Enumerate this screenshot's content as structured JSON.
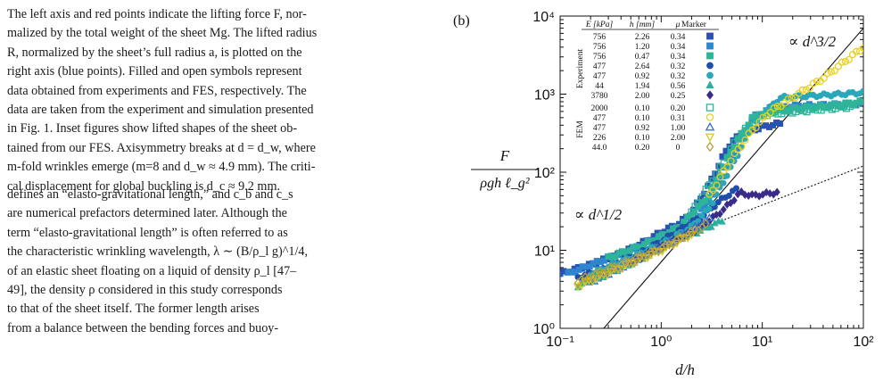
{
  "caption": {
    "lines": [
      "The left axis and red points indicate the lifting force F, nor-",
      "malized by the total weight of the sheet Mg. The lifted radius",
      "R, normalized by the sheet’s full radius a, is plotted on the",
      "right axis (blue points). Filled and open symbols represent",
      "data obtained from experiments and FES, respectively. The",
      "data are taken from the experiment and simulation presented",
      "in Fig. 1. Inset figures show lifted shapes of the sheet ob-",
      "tained from our FES. Axisymmetry breaks at d = d_w, where",
      "m-fold wrinkles emerge (m=8 and d_w ≈ 4.9 mm). The criti-",
      "cal displacement for global buckling is d_c ≈ 9.2 mm."
    ]
  },
  "body": {
    "lines": [
      "defines an “elasto-gravitational length,” and c_b and c_s",
      "are numerical prefactors determined later. Although the",
      "term “elasto-gravitational length” is often referred to as",
      "the characteristic wrinkling wavelength, λ ∼ (B/ρ_l g)^1/4,",
      "of an elastic sheet floating on a liquid of density ρ_l [47–",
      "49], the density ρ considered in this study corresponds",
      "to that of the sheet itself. The former length arises",
      "from a balance between the bending forces and buoy-"
    ]
  },
  "figure": {
    "panel_label": "(b)",
    "ylabel_num": "F",
    "ylabel_den": "ρgh ℓ_g²",
    "xlabel": "d/h",
    "annotation_slope_high": "∝ d^3/2",
    "annotation_slope_low": "∝ d^1/2",
    "x_ticks": [
      "10⁻¹",
      "10⁰",
      "10¹",
      "10²"
    ],
    "y_ticks": [
      "10⁰",
      "10¹",
      "10²",
      "10³",
      "10⁴"
    ],
    "legend": {
      "headers": [
        "E [kPa]",
        "h [mm]",
        "μ",
        "Marker"
      ],
      "group_experiment": "Experiment",
      "group_fem": "FEM",
      "experiment_rows": [
        {
          "E": "756",
          "h": "2.26",
          "mu": "0.34",
          "marker": "square",
          "color": "#2a52b0",
          "filled": true
        },
        {
          "E": "756",
          "h": "1.20",
          "mu": "0.34",
          "marker": "square",
          "color": "#2e86d0",
          "filled": true
        },
        {
          "E": "756",
          "h": "0.47",
          "mu": "0.34",
          "marker": "square",
          "color": "#2fb49a",
          "filled": true
        },
        {
          "E": "477",
          "h": "2.64",
          "mu": "0.32",
          "marker": "circle",
          "color": "#1f4fa8",
          "filled": true
        },
        {
          "E": "477",
          "h": "0.92",
          "mu": "0.32",
          "marker": "circle",
          "color": "#2aa7b8",
          "filled": true
        },
        {
          "E": "44",
          "h": "1.94",
          "mu": "0.56",
          "marker": "triangle",
          "color": "#28b0a0",
          "filled": true
        },
        {
          "E": "3780",
          "h": "2.00",
          "mu": "0.25",
          "marker": "diamond",
          "color": "#3a2a8a",
          "filled": true
        }
      ],
      "fem_rows": [
        {
          "E": "2000",
          "h": "0.10",
          "mu": "0.20",
          "marker": "square",
          "color": "#2fb49a",
          "filled": false
        },
        {
          "E": "477",
          "h": "0.10",
          "mu": "0.31",
          "marker": "circle",
          "color": "#e8d020",
          "filled": false
        },
        {
          "E": "477",
          "h": "0.92",
          "mu": "1.00",
          "marker": "triangle",
          "color": "#2e6fd0",
          "filled": false
        },
        {
          "E": "226",
          "h": "0.10",
          "mu": "2.00",
          "marker": "triangle-down",
          "color": "#d8c820",
          "filled": false
        },
        {
          "E": "44.0",
          "h": "0.20",
          "mu": "0",
          "marker": "diamond",
          "color": "#b8a040",
          "filled": false
        }
      ]
    }
  },
  "chart_data": {
    "type": "scatter",
    "xscale": "log",
    "yscale": "log",
    "xlim": [
      0.1,
      100
    ],
    "ylim": [
      1,
      10000
    ],
    "xlabel": "d/h",
    "ylabel": "F / (ρgh ℓ_g²)",
    "reference_lines": [
      {
        "label": "∝ d^3/2",
        "style": "solid",
        "points": [
          [
            0.27,
            1
          ],
          [
            100,
            7000
          ]
        ]
      },
      {
        "label": "∝ d^1/2",
        "style": "dotted",
        "points": [
          [
            1,
            12
          ],
          [
            100,
            120
          ]
        ]
      }
    ],
    "series": [
      {
        "marker": "square",
        "color": "#2a52b0",
        "filled": true,
        "x": [
          0.1,
          0.2,
          0.4,
          0.7,
          1,
          1.5,
          2,
          3,
          4,
          5,
          7,
          10,
          15
        ],
        "y": [
          5,
          6.5,
          9,
          13,
          17,
          22,
          30,
          70,
          150,
          250,
          330,
          380,
          420
        ]
      },
      {
        "marker": "square",
        "color": "#2e86d0",
        "filled": true,
        "x": [
          0.12,
          0.3,
          0.6,
          1,
          2,
          3,
          5,
          8,
          12,
          20,
          40,
          70,
          100
        ],
        "y": [
          5,
          8,
          11,
          15,
          22,
          45,
          150,
          500,
          650,
          700,
          720,
          740,
          760
        ]
      },
      {
        "marker": "square",
        "color": "#2fb49a",
        "filled": true,
        "x": [
          0.3,
          0.7,
          1.5,
          3,
          5,
          8,
          12,
          20,
          40,
          70,
          100
        ],
        "y": [
          8,
          12,
          20,
          50,
          200,
          500,
          600,
          650,
          700,
          750,
          800
        ]
      },
      {
        "marker": "circle",
        "color": "#1f4fa8",
        "filled": true,
        "x": [
          0.15,
          0.3,
          0.6,
          1,
          1.5,
          2.5,
          4,
          6
        ],
        "y": [
          4.5,
          6,
          9,
          13,
          18,
          27,
          45,
          65
        ]
      },
      {
        "marker": "circle",
        "color": "#2aa7b8",
        "filled": true,
        "x": [
          0.2,
          0.5,
          1,
          2,
          3,
          5,
          8,
          15,
          30,
          60,
          100
        ],
        "y": [
          5,
          8,
          12,
          20,
          35,
          120,
          400,
          900,
          950,
          1000,
          1050
        ]
      },
      {
        "marker": "triangle",
        "color": "#28b0a0",
        "filled": true,
        "x": [
          0.15,
          0.3,
          0.6,
          1,
          1.5,
          2.5,
          4
        ],
        "y": [
          3.5,
          5,
          7.5,
          11,
          14,
          18,
          24
        ]
      },
      {
        "marker": "diamond",
        "color": "#3a2a8a",
        "filled": true,
        "x": [
          0.5,
          1,
          2,
          3,
          4,
          5,
          6,
          8,
          10,
          14
        ],
        "y": [
          7,
          11,
          17,
          24,
          32,
          42,
          55,
          50,
          52,
          55
        ]
      },
      {
        "marker": "square",
        "color": "#2fb49a",
        "filled": false,
        "x": [
          2,
          4,
          6,
          10,
          20,
          40,
          80
        ],
        "y": [
          30,
          120,
          300,
          550,
          600,
          650,
          700
        ]
      },
      {
        "marker": "circle",
        "color": "#e8d020",
        "filled": false,
        "x": [
          3,
          5,
          8,
          12,
          20,
          40,
          70,
          100
        ],
        "y": [
          50,
          150,
          350,
          600,
          900,
          1600,
          2800,
          4000
        ]
      },
      {
        "marker": "triangle",
        "color": "#2e6fd0",
        "filled": false,
        "x": [
          0.2,
          0.5,
          1,
          2,
          3
        ],
        "y": [
          4,
          7,
          11,
          18,
          25
        ]
      },
      {
        "marker": "triangle-down",
        "color": "#d8c820",
        "filled": false,
        "x": [
          0.15,
          0.4,
          1,
          2
        ],
        "y": [
          3.5,
          6,
          10,
          16
        ]
      },
      {
        "marker": "diamond",
        "color": "#b8a040",
        "filled": false,
        "x": [
          0.15,
          0.4,
          1,
          2,
          3
        ],
        "y": [
          4,
          6.5,
          10.5,
          17,
          22
        ]
      }
    ]
  }
}
